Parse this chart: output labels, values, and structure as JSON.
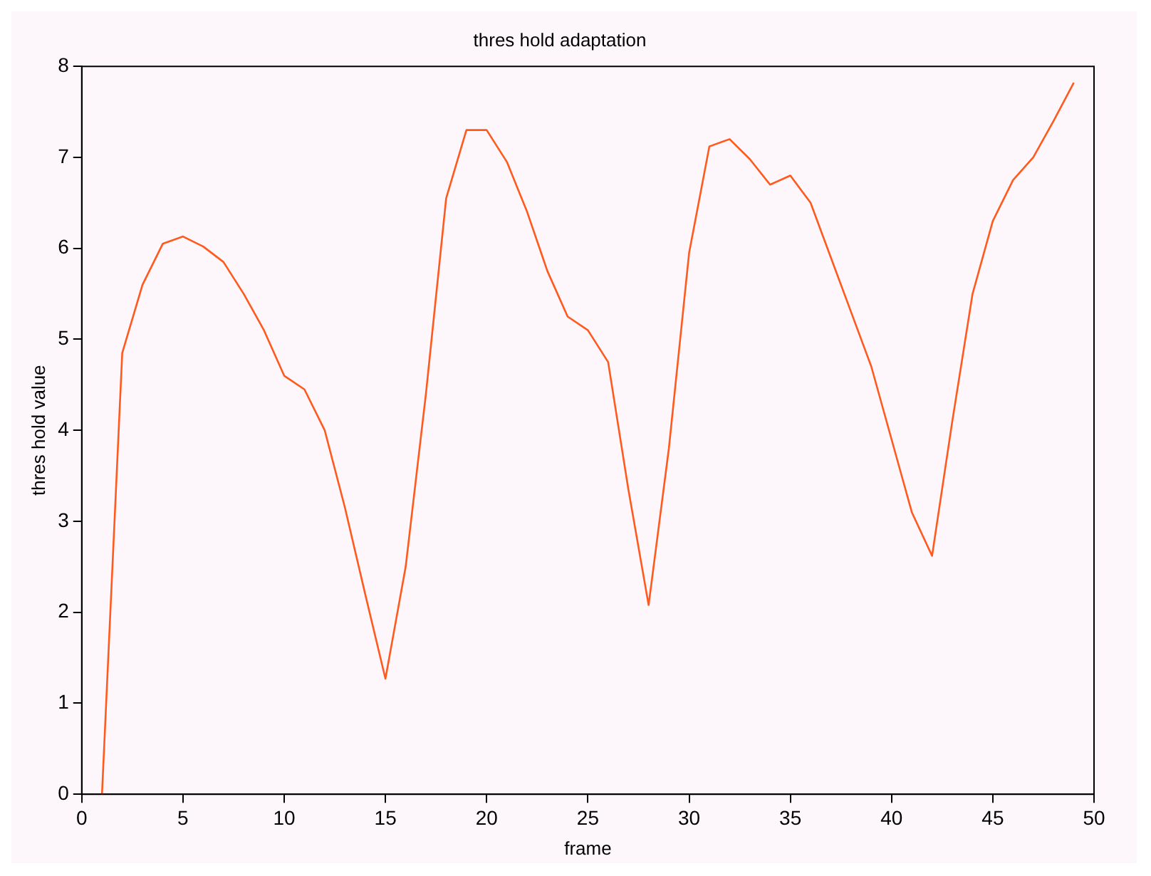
{
  "chart_data": {
    "type": "line",
    "title": "thres hold adaptation",
    "xlabel": "frame",
    "ylabel": "thres hold value",
    "x": [
      1,
      2,
      3,
      4,
      5,
      6,
      7,
      8,
      9,
      10,
      11,
      12,
      13,
      14,
      15,
      16,
      17,
      18,
      19,
      20,
      21,
      22,
      23,
      24,
      25,
      26,
      27,
      28,
      29,
      30,
      31,
      32,
      33,
      34,
      35,
      36,
      37,
      38,
      39,
      40,
      41,
      42,
      43,
      44,
      45,
      46,
      47,
      48,
      49
    ],
    "series": [
      {
        "color": "#ff5a1e",
        "values": [
          0,
          4.85,
          5.6,
          6.05,
          6.13,
          6.02,
          5.85,
          5.5,
          5.1,
          4.6,
          4.45,
          4.0,
          3.15,
          2.2,
          1.27,
          2.5,
          4.4,
          6.55,
          7.3,
          7.3,
          6.95,
          6.4,
          5.75,
          5.25,
          5.1,
          4.75,
          3.35,
          2.08,
          3.8,
          5.95,
          7.12,
          7.2,
          6.98,
          6.7,
          6.8,
          6.5,
          5.9,
          5.3,
          4.7,
          3.9,
          3.1,
          2.62,
          4.1,
          5.5,
          6.3,
          6.75,
          7.0,
          7.4,
          7.82
        ]
      }
    ],
    "xlim": [
      0,
      50
    ],
    "xticks": [
      0,
      5,
      10,
      15,
      20,
      25,
      30,
      35,
      40,
      45,
      50
    ],
    "ylim": [
      0,
      8
    ],
    "yticks": [
      0,
      1,
      2,
      3,
      4,
      5,
      6,
      7,
      8
    ],
    "grid": false,
    "legend": false,
    "marker": "none",
    "line_style": "solid"
  }
}
